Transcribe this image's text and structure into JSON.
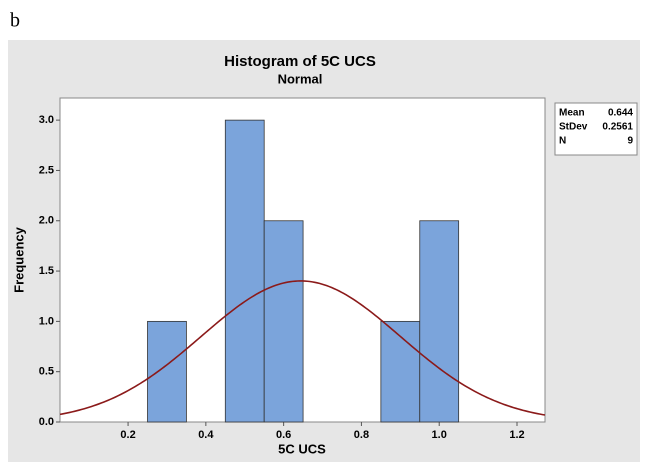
{
  "panel_label": "b",
  "chart_data": {
    "type": "histogram",
    "title": "Histogram of 5C UCS",
    "subtitle": "Normal",
    "xlabel": "5C UCS",
    "ylabel": "Frequency",
    "bins": [
      0.25,
      0.35,
      0.45,
      0.55,
      0.65,
      0.75,
      0.85,
      0.95,
      1.05
    ],
    "counts": [
      1,
      0,
      3,
      2,
      0,
      0,
      1,
      2
    ],
    "color": "#7ba4db",
    "curve_color": "#8b1a1a",
    "xlim": [
      0.025,
      1.272
    ],
    "xticks": [
      0.2,
      0.4,
      0.6,
      0.8,
      {
        "value": 1,
        "label": "1.0"
      },
      1.2
    ],
    "ylim": [
      0,
      3.22
    ],
    "yticks": [
      {
        "value": 0,
        "label": "0.0"
      },
      0.5,
      {
        "value": 1,
        "label": "1.0"
      },
      1.5,
      {
        "value": 2,
        "label": "2.0"
      },
      2.5,
      {
        "value": 3,
        "label": "3.0"
      }
    ],
    "stats": [
      {
        "label": "Mean",
        "value": 0.644
      },
      {
        "label": "StDev",
        "value": 0.2561
      },
      {
        "label": "N",
        "value": 9
      }
    ],
    "legend": "right"
  }
}
